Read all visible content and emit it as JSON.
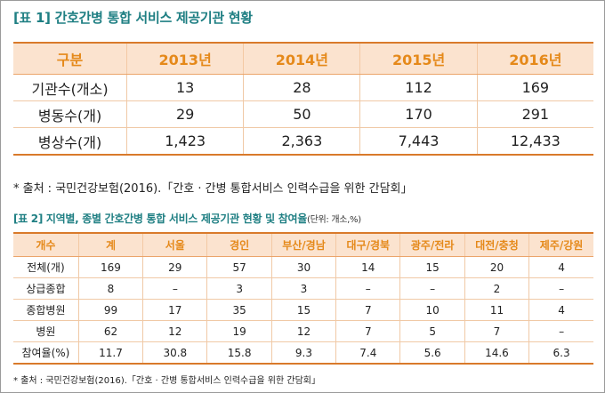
{
  "table1": {
    "title": "[표 1] 간호간병 통합 서비스 제공기관 현황",
    "headers": [
      "구분",
      "2013년",
      "2014년",
      "2015년",
      "2016년"
    ],
    "rows": [
      [
        "기관수(개소)",
        "13",
        "28",
        "112",
        "169"
      ],
      [
        "병동수(개)",
        "29",
        "50",
        "170",
        "291"
      ],
      [
        "병상수(개)",
        "1,423",
        "2,363",
        "7,443",
        "12,433"
      ]
    ],
    "source": "* 출처 : 국민건강보험(2016).「간호 · 간병 통합서비스 인력수급을 위한 간담회」"
  },
  "table2": {
    "title": "[표 2] 지역별, 종별 간호간병 통합 서비스 제공기관 현황 및 참여율",
    "unit": "(단위: 개소,%)",
    "headers": [
      "개수",
      "계",
      "서울",
      "경인",
      "부산/경남",
      "대구/경북",
      "광주/전라",
      "대전/충청",
      "제주/강원"
    ],
    "rows": [
      [
        "전체(개)",
        "169",
        "29",
        "57",
        "30",
        "14",
        "15",
        "20",
        "4"
      ],
      [
        "상급종합",
        "8",
        "–",
        "3",
        "3",
        "–",
        "–",
        "2",
        "–"
      ],
      [
        "종합병원",
        "99",
        "17",
        "35",
        "15",
        "7",
        "10",
        "11",
        "4"
      ],
      [
        "병원",
        "62",
        "12",
        "19",
        "12",
        "7",
        "5",
        "7",
        "–"
      ],
      [
        "참여율(%)",
        "11.7",
        "30.8",
        "15.8",
        "9.3",
        "7.4",
        "5.6",
        "14.6",
        "6.3"
      ]
    ],
    "source": "* 출처 : 국민건강보험(2016).「간호 · 간병 통합서비스 인력수급을 위한 간담회」"
  }
}
